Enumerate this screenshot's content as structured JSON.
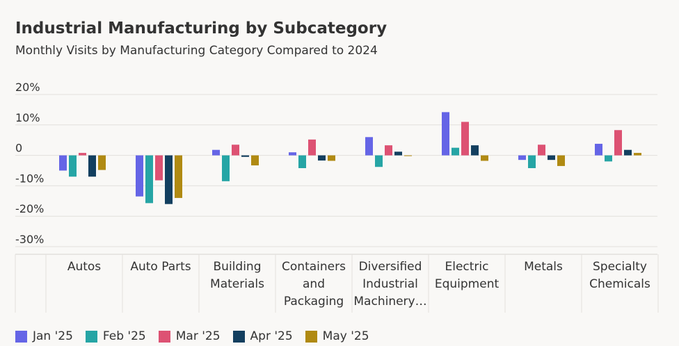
{
  "header": {
    "title": "Industrial Manufacturing by Subcategory",
    "subtitle": "Monthly Visits by Manufacturing Category Compared to 2024"
  },
  "chart_data": {
    "type": "bar",
    "title": "Industrial Manufacturing by Subcategory",
    "subtitle": "Monthly Visits by Manufacturing Category Compared to 2024",
    "xlabel": "",
    "ylabel": "",
    "ylim": [
      -30,
      20
    ],
    "y_ticks": [
      20,
      10,
      0,
      -10,
      -20,
      -30
    ],
    "y_tick_labels": [
      "20%",
      "10%",
      "0",
      "-10%",
      "-20%",
      "-30%"
    ],
    "grid": true,
    "legend_position": "bottom-left",
    "categories": [
      [
        "Autos"
      ],
      [
        "Auto Parts"
      ],
      [
        "Building",
        "Materials"
      ],
      [
        "Containers",
        "and",
        "Packaging"
      ],
      [
        "Diversified",
        "Industrial",
        "Machinery…"
      ],
      [
        "Electric",
        "Equipment"
      ],
      [
        "Metals"
      ],
      [
        "Specialty",
        "Chemicals"
      ]
    ],
    "series": [
      {
        "name": "Jan '25",
        "color": "#6565e6",
        "values": [
          -5,
          -13.5,
          1.8,
          1,
          6,
          14.2,
          -1.5,
          3.8
        ]
      },
      {
        "name": "Feb '25",
        "color": "#26a5a5",
        "values": [
          -7,
          -15.7,
          -8.5,
          -4.2,
          -3.8,
          2.5,
          -4.2,
          -2
        ]
      },
      {
        "name": "Mar '25",
        "color": "#dd5273",
        "values": [
          0.8,
          -8.2,
          3.5,
          5.2,
          3.3,
          11,
          3.5,
          8.3
        ]
      },
      {
        "name": "Apr '25",
        "color": "#133f5f",
        "values": [
          -7,
          -16,
          -0.5,
          -1.7,
          1.2,
          3.3,
          -1.5,
          1.8
        ]
      },
      {
        "name": "May '25",
        "color": "#b08a12",
        "values": [
          -4.8,
          -14,
          -3.3,
          -1.8,
          -0.2,
          -1.8,
          -3.5,
          0.8
        ]
      }
    ]
  }
}
